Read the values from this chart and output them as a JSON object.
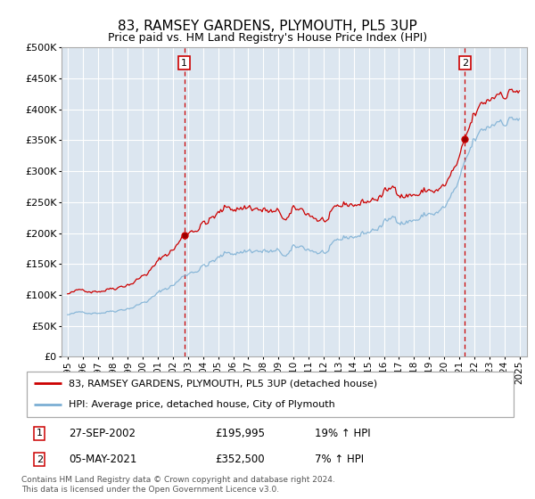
{
  "title": "83, RAMSEY GARDENS, PLYMOUTH, PL5 3UP",
  "subtitle": "Price paid vs. HM Land Registry's House Price Index (HPI)",
  "legend_line1": "83, RAMSEY GARDENS, PLYMOUTH, PL5 3UP (detached house)",
  "legend_line2": "HPI: Average price, detached house, City of Plymouth",
  "ann1_date": "27-SEP-2002",
  "ann1_price": "£195,995",
  "ann1_hpi": "19% ↑ HPI",
  "ann1_x": 2002.75,
  "ann1_y": 195995,
  "ann2_date": "05-MAY-2021",
  "ann2_price": "£352,500",
  "ann2_hpi": "7% ↑ HPI",
  "ann2_x": 2021.37,
  "ann2_y": 352500,
  "footer1": "Contains HM Land Registry data © Crown copyright and database right 2024.",
  "footer2": "This data is licensed under the Open Government Licence v3.0.",
  "plot_bg_color": "#dce6f0",
  "red_color": "#cc0000",
  "blue_color": "#7bafd4",
  "grid_color": "#ffffff",
  "ylim": [
    0,
    500000
  ],
  "xlim_start": 1994.6,
  "xlim_end": 2025.5
}
